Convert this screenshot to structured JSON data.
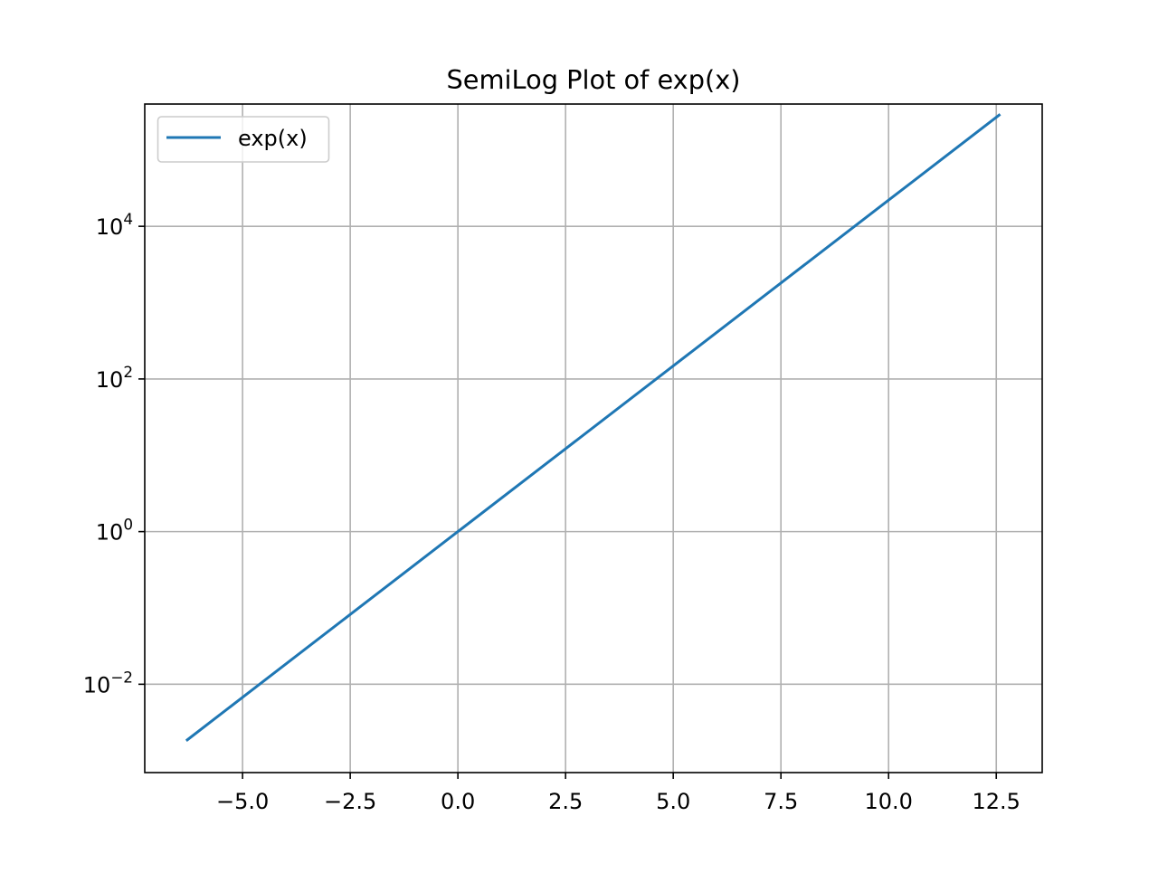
{
  "chart_data": {
    "type": "line",
    "title": "SemiLog Plot of exp(x)",
    "xlabel": "",
    "ylabel": "",
    "yscale": "log",
    "xlim": [
      -7.2708,
      13.5664
    ],
    "ylim": [
      0.000696,
      400000.0
    ],
    "grid": true,
    "legend_position": "upper left",
    "x_ticks": [
      -5.0,
      -2.5,
      0.0,
      2.5,
      5.0,
      7.5,
      10.0,
      12.5
    ],
    "x_tick_labels": [
      "−5.0",
      "−2.5",
      "0.0",
      "2.5",
      "5.0",
      "7.5",
      "10.0",
      "12.5"
    ],
    "y_ticks": [
      0.01,
      1,
      100,
      10000
    ],
    "y_tick_labels": [
      {
        "base": "10",
        "exp": "−2"
      },
      {
        "base": "10",
        "exp": "0"
      },
      {
        "base": "10",
        "exp": "2"
      },
      {
        "base": "10",
        "exp": "4"
      }
    ],
    "series": [
      {
        "name": "exp(x)",
        "color": "#1f77b4",
        "x": [
          -6.2832,
          -5.0,
          -2.5,
          0.0,
          2.5,
          5.0,
          7.5,
          10.0,
          12.5664
        ],
        "y": [
          0.001867,
          0.006738,
          0.08208,
          1.0,
          12.182,
          148.41,
          1808.04,
          22026.47,
          286751.3
        ]
      }
    ]
  }
}
